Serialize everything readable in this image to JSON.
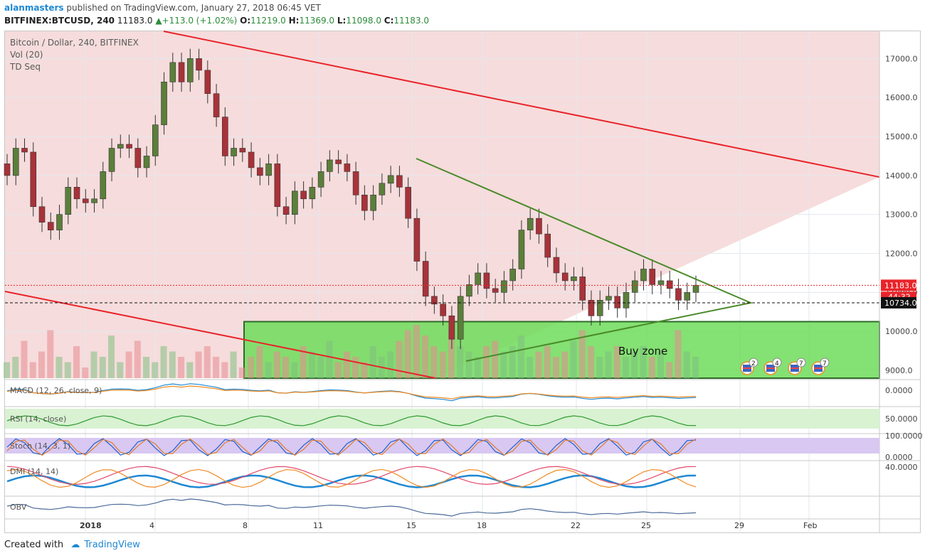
{
  "header": {
    "author": "alanmasters",
    "published_text": "published on TradingView.com, January 27, 2018 06:45 VET",
    "symbol": "BITFINEX:BTCUSD, 240",
    "last": "11183.0",
    "change": "+113.0 (+1.02%)",
    "o_label": "O:",
    "o": "11219.0",
    "h_label": "H:",
    "h": "11369.0",
    "l_label": "L:",
    "l": "11098.0",
    "c_label": "C:",
    "c": "11183.0"
  },
  "legend": {
    "title": "Bitcoin / Dollar, 240, BITFINEX",
    "vol": "Vol (20)",
    "tdseq": "TD Seq"
  },
  "colors": {
    "up": "#5b7f3a",
    "down": "#a8323a",
    "resistance": "#e8242a",
    "triangle": "#4a8a2a",
    "zone_fill": "#6fdc5a",
    "zone_edge": "#2e6b2a",
    "bg_zone": "#f6dcdc",
    "last_price": "#e8242a",
    "accent": "#1e88d3"
  },
  "chart_data": {
    "type": "candlestick",
    "title": "Bitcoin / Dollar, 240, BITFINEX",
    "yticks": [
      9000,
      10000,
      11000,
      12000,
      13000,
      14000,
      15000,
      16000,
      17000
    ],
    "ytick_labels": [
      "9000.0",
      "10000.0",
      "11000.0",
      "12000.0",
      "13000.0",
      "14000.0",
      "15000.0",
      "16000.0",
      "17000.0"
    ],
    "ylim": [
      8800,
      17700
    ],
    "x_tick_labels": [
      "2018",
      "4",
      "8",
      "11",
      "15",
      "18",
      "22",
      "25",
      "29",
      "Feb"
    ],
    "last_price": 11183.0,
    "last_price_label": "11183.0",
    "countdown_label": "44:32",
    "crosshair_price": 10734.0,
    "crosshair_label": "10734.0",
    "close_path": [
      14000,
      14700,
      14600,
      13200,
      12800,
      12600,
      13000,
      13700,
      13400,
      13300,
      13400,
      14100,
      14700,
      14800,
      14700,
      14200,
      14500,
      15300,
      16400,
      16900,
      16400,
      17000,
      16700,
      16100,
      15500,
      14500,
      14700,
      14600,
      14200,
      14000,
      14300,
      13200,
      13000,
      13600,
      13400,
      13700,
      14100,
      14400,
      14300,
      14100,
      13500,
      13100,
      13500,
      13800,
      14000,
      13700,
      12900,
      11800,
      10900,
      10700,
      10400,
      9800,
      10900,
      11200,
      11500,
      11100,
      11000,
      11300,
      11600,
      12600,
      12900,
      12500,
      11900,
      11500,
      11300,
      11400,
      10800,
      10400,
      10800,
      10900,
      10600,
      11000,
      11300,
      11600,
      11200,
      11300,
      11100,
      10800,
      11000,
      11183
    ],
    "volume_profile": [
      0.3,
      0.4,
      0.7,
      0.3,
      0.5,
      0.9,
      0.4,
      0.3,
      0.6,
      0.2,
      0.5,
      0.4,
      0.8,
      0.3,
      0.5,
      0.7,
      0.4,
      0.3,
      0.6,
      0.5,
      0.4,
      0.3,
      0.5,
      0.6,
      0.4,
      0.3,
      0.5,
      0.2,
      0.4,
      0.6,
      0.3,
      0.5,
      0.4,
      0.3,
      0.6,
      0.5,
      0.4,
      0.7,
      0.3,
      0.5,
      0.4,
      0.3,
      0.6,
      0.4,
      0.5,
      0.7,
      0.9,
      1.0,
      0.8,
      0.6,
      0.5,
      0.9,
      0.6,
      0.5,
      0.4,
      0.6,
      0.7,
      0.5,
      0.6,
      0.8,
      0.4,
      0.5,
      0.6,
      0.4,
      0.5,
      0.7,
      0.9,
      0.6,
      0.4,
      0.5,
      0.6,
      0.4,
      0.5,
      0.6,
      0.4,
      0.5,
      0.3,
      0.9,
      0.5,
      0.4
    ],
    "annotations": {
      "buy_zone_label": "Buy zone",
      "buy_zone_price_range": [
        8800,
        10250
      ],
      "event_counts": [
        "2",
        "4",
        "7",
        "7"
      ]
    },
    "panels": [
      {
        "name": "MACD",
        "label": "MACD (12, 26, close, 9)",
        "axis_labels": [
          "0.0000"
        ]
      },
      {
        "name": "RSI",
        "label": "RSI (14, close)",
        "axis_labels": [
          "50.0000"
        ]
      },
      {
        "name": "Stoch",
        "label": "Stoch (14, 3, 1)",
        "axis_labels": [
          "100.0000",
          "0.0000"
        ]
      },
      {
        "name": "DMI",
        "label": "DMI (14, 14)",
        "axis_labels": [
          "40.0000"
        ]
      },
      {
        "name": "OBV",
        "label": "OBV",
        "axis_labels": []
      }
    ]
  },
  "footer": {
    "created_with": "Created with",
    "brand": "TradingView"
  }
}
